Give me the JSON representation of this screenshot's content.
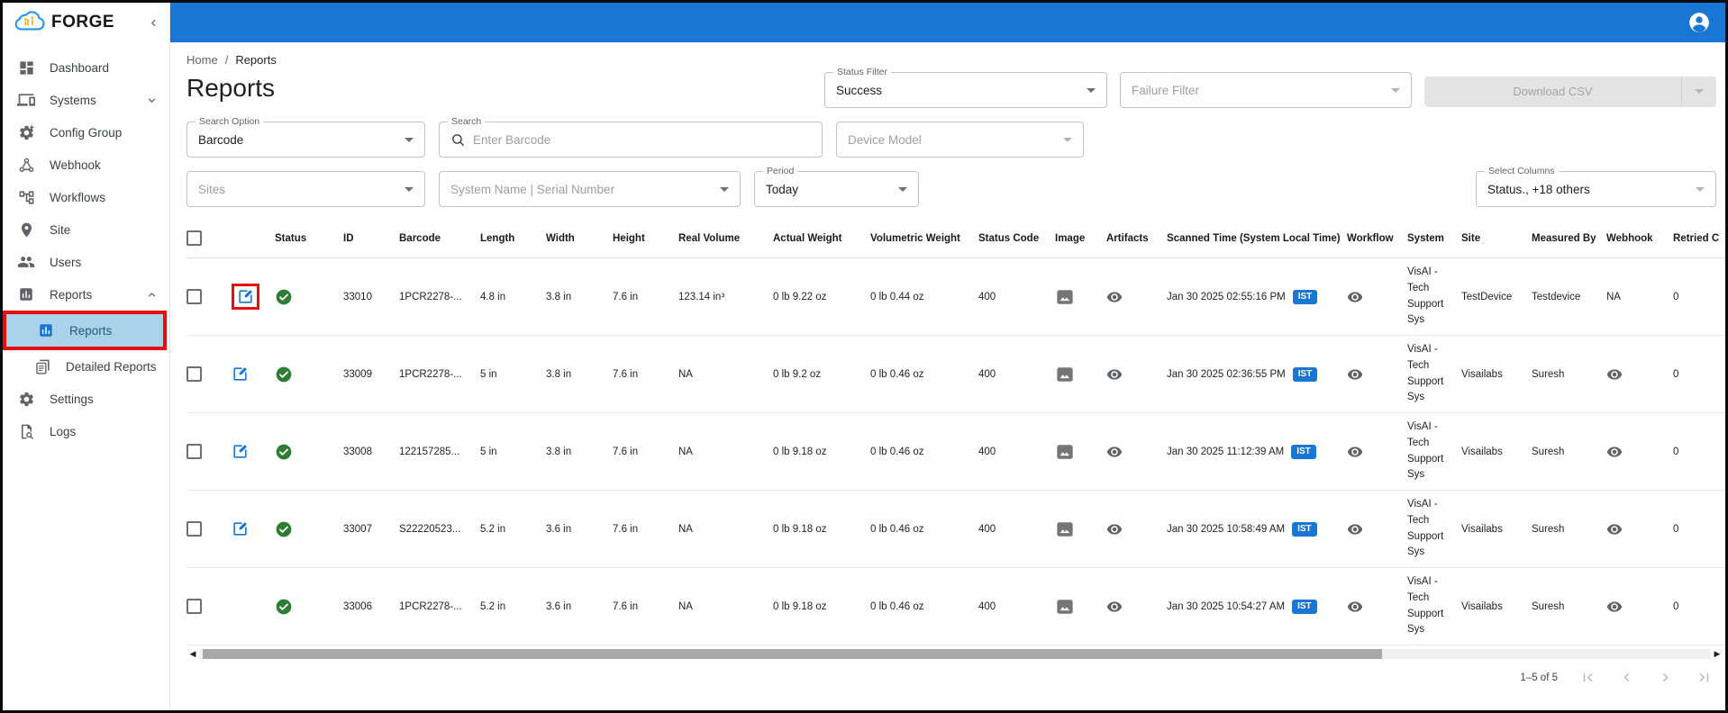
{
  "brand": {
    "name": "FORGE"
  },
  "colors": {
    "topbar": "#1976d2",
    "accent": "#1976d2",
    "selected_item_bg": "#a9d3e8",
    "annotation": "#e80c0c",
    "success": "#2e7d32",
    "timezone_badge": "#1976d2"
  },
  "sidebar": {
    "items": [
      {
        "label": "Dashboard"
      },
      {
        "label": "Systems"
      },
      {
        "label": "Config Group"
      },
      {
        "label": "Webhook"
      },
      {
        "label": "Workflows"
      },
      {
        "label": "Site"
      },
      {
        "label": "Users"
      },
      {
        "label": "Reports"
      },
      {
        "label": "Reports"
      },
      {
        "label": "Detailed Reports"
      },
      {
        "label": "Settings"
      },
      {
        "label": "Logs"
      }
    ]
  },
  "breadcrumb": {
    "home": "Home",
    "separator": "/",
    "current": "Reports"
  },
  "page": {
    "title": "Reports"
  },
  "filters": {
    "status_filter": {
      "label": "Status Filter",
      "value": "Success"
    },
    "failure_filter": {
      "placeholder": "Failure Filter"
    },
    "download_csv_label": "Download CSV",
    "search_option": {
      "label": "Search Option",
      "value": "Barcode"
    },
    "search": {
      "label": "Search",
      "placeholder": "Enter Barcode"
    },
    "device_model": {
      "placeholder": "Device Model"
    },
    "sites": {
      "placeholder": "Sites"
    },
    "system_serial": {
      "placeholder": "System Name | Serial Number"
    },
    "period": {
      "label": "Period",
      "value": "Today"
    },
    "select_columns": {
      "label": "Select Columns",
      "value": "Status., +18 others"
    }
  },
  "table": {
    "columns": [
      "Status",
      "ID",
      "Barcode",
      "Length",
      "Width",
      "Height",
      "Real Volume",
      "Actual Weight",
      "Volumetric Weight",
      "Status Code",
      "Image",
      "Artifacts",
      "Scanned Time (System Local Time)",
      "Workflow",
      "System",
      "Site",
      "Measured By",
      "Webhook",
      "Retried C"
    ],
    "rows": [
      {
        "id": "33010",
        "barcode": "1PCR2278-...",
        "length": "4.8 in",
        "width": "3.8 in",
        "height": "7.6 in",
        "real_volume": "123.14 in³",
        "actual_weight": "0 lb 9.22 oz",
        "volumetric_weight": "0 lb 0.44 oz",
        "status_code": "400",
        "scanned_time": "Jan 30 2025 02:55:16 PM",
        "timezone": "IST",
        "system": "VisAI - Tech Support Sys",
        "site": "TestDevice",
        "measured_by": "Testdevice",
        "webhook": "NA",
        "retried": "0",
        "status": "success",
        "has_edit": true,
        "edit_annotated": true
      },
      {
        "id": "33009",
        "barcode": "1PCR2278-...",
        "length": "5 in",
        "width": "3.8 in",
        "height": "7.6 in",
        "real_volume": "NA",
        "actual_weight": "0 lb 9.2 oz",
        "volumetric_weight": "0 lb 0.46 oz",
        "status_code": "400",
        "scanned_time": "Jan 30 2025 02:36:55 PM",
        "timezone": "IST",
        "system": "VisAI - Tech Support Sys",
        "site": "Visailabs",
        "measured_by": "Suresh",
        "webhook": "visibility-icon",
        "retried": "0",
        "status": "success",
        "has_edit": true,
        "edit_annotated": false
      },
      {
        "id": "33008",
        "barcode": "122157285...",
        "length": "5 in",
        "width": "3.8 in",
        "height": "7.6 in",
        "real_volume": "NA",
        "actual_weight": "0 lb 9.18 oz",
        "volumetric_weight": "0 lb 0.46 oz",
        "status_code": "400",
        "scanned_time": "Jan 30 2025 11:12:39 AM",
        "timezone": "IST",
        "system": "VisAI - Tech Support Sys",
        "site": "Visailabs",
        "measured_by": "Suresh",
        "webhook": "visibility-icon",
        "retried": "0",
        "status": "success",
        "has_edit": true,
        "edit_annotated": false
      },
      {
        "id": "33007",
        "barcode": "S22220523...",
        "length": "5.2 in",
        "width": "3.6 in",
        "height": "7.6 in",
        "real_volume": "NA",
        "actual_weight": "0 lb 9.18 oz",
        "volumetric_weight": "0 lb 0.46 oz",
        "status_code": "400",
        "scanned_time": "Jan 30 2025 10:58:49 AM",
        "timezone": "IST",
        "system": "VisAI - Tech Support Sys",
        "site": "Visailabs",
        "measured_by": "Suresh",
        "webhook": "visibility-icon",
        "retried": "0",
        "status": "success",
        "has_edit": true,
        "edit_annotated": false
      },
      {
        "id": "33006",
        "barcode": "1PCR2278-...",
        "length": "5.2 in",
        "width": "3.6 in",
        "height": "7.6 in",
        "real_volume": "NA",
        "actual_weight": "0 lb 9.18 oz",
        "volumetric_weight": "0 lb 0.46 oz",
        "status_code": "400",
        "scanned_time": "Jan 30 2025 10:54:27 AM",
        "timezone": "IST",
        "system": "VisAI - Tech Support Sys",
        "site": "Visailabs",
        "measured_by": "Suresh",
        "webhook": "visibility-icon",
        "retried": "0",
        "status": "success",
        "has_edit": false,
        "edit_annotated": false
      }
    ]
  },
  "pagination": {
    "range_label": "1–5 of 5"
  }
}
